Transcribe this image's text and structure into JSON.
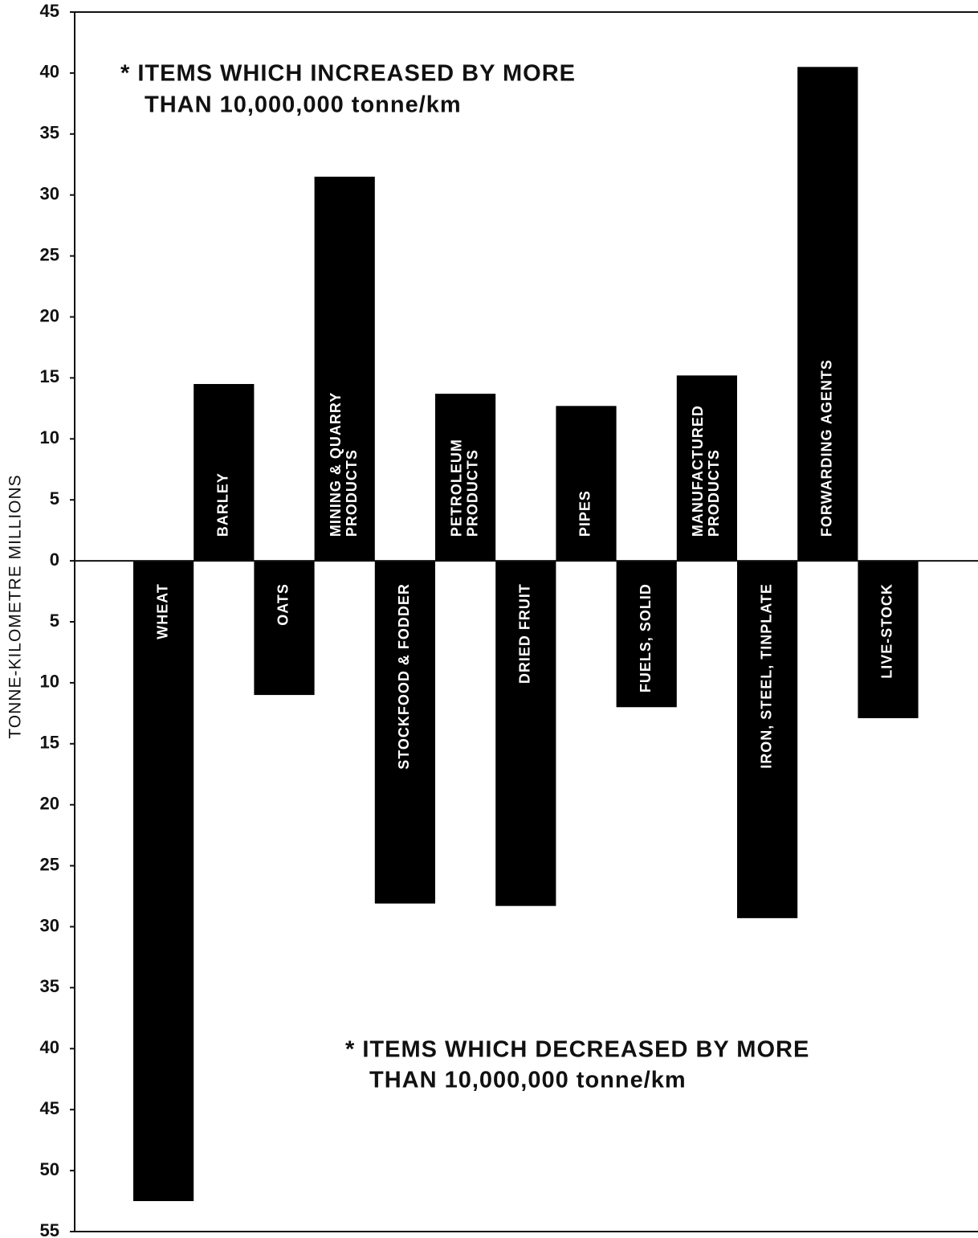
{
  "chart_data": {
    "type": "bar",
    "y_label": "TONNE-KILOMETRE MILLIONS",
    "annotations": [
      [
        "* ITEMS WHICH INCREASED BY MORE",
        "THAN 10,000,000 tonne/km"
      ],
      [
        "* ITEMS WHICH DECREASED BY MORE",
        "THAN 10,000,000 tonne/km"
      ]
    ],
    "categories": [
      [
        "WHEAT"
      ],
      [
        "BARLEY"
      ],
      [
        "OATS"
      ],
      [
        "MINING & QUARRY",
        "PRODUCTS"
      ],
      [
        "STOCKFOOD & FODDER"
      ],
      [
        "PETROLEUM",
        "PRODUCTS"
      ],
      [
        "DRIED FRUIT"
      ],
      [
        "PIPES"
      ],
      [
        "FUELS, SOLID"
      ],
      [
        "MANUFACTURED",
        "PRODUCTS"
      ],
      [
        "IRON, STEEL, TINPLATE"
      ],
      [
        "FORWARDING AGENTS"
      ],
      [
        "LIVE-STOCK"
      ]
    ],
    "values": [
      -52.5,
      14.5,
      -11,
      31.5,
      -28.1,
      13.7,
      -28.3,
      12.7,
      -12,
      15.2,
      -29.3,
      40.5,
      -12.9
    ],
    "color": "#000000",
    "ylim": [
      -55,
      45
    ],
    "yticks": [
      45,
      40,
      35,
      30,
      25,
      20,
      15,
      10,
      5,
      0,
      {
        "value": -5,
        "label": "5"
      },
      {
        "value": -10,
        "label": "10"
      },
      {
        "value": -15,
        "label": "15"
      },
      {
        "value": -20,
        "label": "20"
      },
      {
        "value": -25,
        "label": "25"
      },
      {
        "value": -30,
        "label": "30"
      },
      {
        "value": -35,
        "label": "35"
      },
      {
        "value": -40,
        "label": "40"
      },
      {
        "value": -45,
        "label": "45"
      },
      {
        "value": -50,
        "label": "50"
      },
      {
        "value": -55,
        "label": "55"
      }
    ]
  }
}
